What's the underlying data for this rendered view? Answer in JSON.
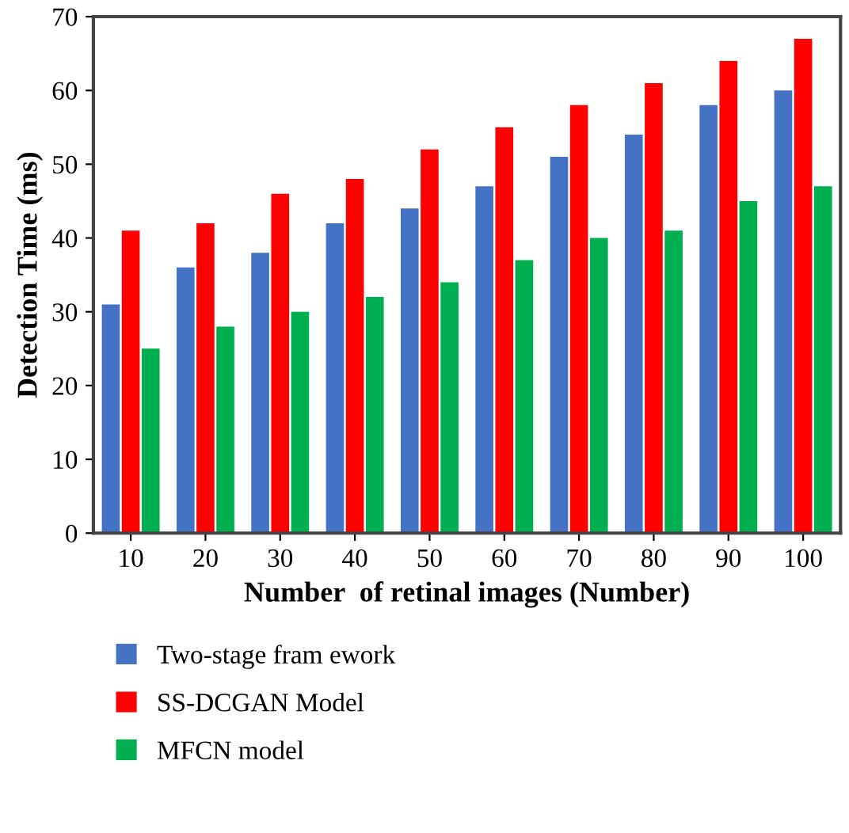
{
  "chart_data": {
    "type": "bar",
    "xlabel": "Number  of retinal images (Number)",
    "ylabel": "Detection Time (ms)",
    "categories": [
      "10",
      "20",
      "30",
      "40",
      "50",
      "60",
      "70",
      "80",
      "90",
      "100"
    ],
    "series": [
      {
        "name": "Two-stage fram ework",
        "color": "#4472c4",
        "values": [
          31,
          36,
          38,
          42,
          44,
          47,
          51,
          54,
          58,
          60
        ]
      },
      {
        "name": "SS-DCGAN Model",
        "color": "#ff0000",
        "values": [
          41,
          42,
          46,
          48,
          52,
          55,
          58,
          61,
          64,
          67
        ]
      },
      {
        "name": "MFCN model",
        "color": "#00b050",
        "values": [
          25,
          28,
          30,
          32,
          34,
          37,
          40,
          41,
          45,
          47
        ]
      }
    ],
    "ylim": [
      0,
      70
    ],
    "yticks": [
      0,
      10,
      20,
      30,
      40,
      50,
      60,
      70
    ],
    "grid": false,
    "legend": "bottom left"
  }
}
